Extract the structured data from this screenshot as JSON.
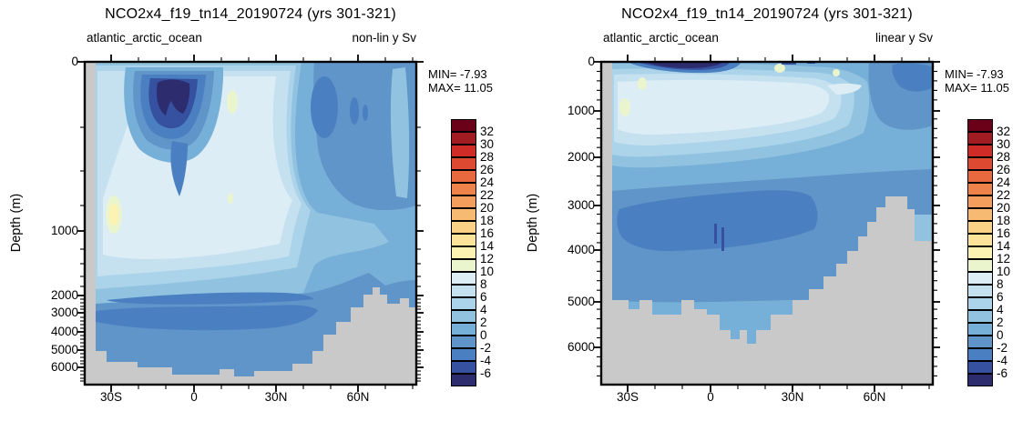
{
  "panels": [
    {
      "title": "NCO2x4_f19_tn14_20190724 (yrs 301-321)",
      "subtitle_left": "atlantic_arctic_ocean",
      "subtitle_right": "non-lin y Sv",
      "ylabel": "Depth (m)",
      "min_label": "MIN= -7.93",
      "max_label": "MAX= 11.05",
      "y_ticks": [
        "0",
        "1000",
        "2000",
        "3000",
        "4000",
        "5000",
        "6000"
      ],
      "x_ticks": [
        "30S",
        "0",
        "30N",
        "60N"
      ]
    },
    {
      "title": "NCO2x4_f19_tn14_20190724 (yrs 301-321)",
      "subtitle_left": "atlantic_arctic_ocean",
      "subtitle_right": "linear y Sv",
      "ylabel": "Depth (m)",
      "min_label": "MIN= -7.93",
      "max_label": "MAX= 11.05",
      "y_ticks": [
        "0",
        "1000",
        "2000",
        "3000",
        "4000",
        "5000",
        "6000"
      ],
      "x_ticks": [
        "30S",
        "0",
        "30N",
        "60N"
      ]
    }
  ],
  "colorbar": {
    "levels": [
      "32",
      "30",
      "28",
      "26",
      "24",
      "22",
      "20",
      "18",
      "16",
      "14",
      "12",
      "10",
      "8",
      "6",
      "4",
      "2",
      "0",
      "-2",
      "-4",
      "-6"
    ],
    "palette": [
      "#6b0019",
      "#a11d21",
      "#d02c27",
      "#de4a31",
      "#e8693d",
      "#ee8349",
      "#f39e5c",
      "#f7ba72",
      "#fad185",
      "#fce59b",
      "#fcf2b1",
      "#eaf5cd",
      "#dcedf5",
      "#c5e1f0",
      "#abd3e9",
      "#91c3e0",
      "#76afd7",
      "#5f95c8",
      "#4a80c1",
      "#36519f",
      "#2c2c6e"
    ]
  },
  "colors": {
    "land": "#c9c9c9",
    "frame": "#000000",
    "background": "#ffffff"
  },
  "chart_data": [
    {
      "type": "heatmap",
      "title": "NCO2x4_f19_tn14_20190724 (yrs 301-321)",
      "region_label": "atlantic_arctic_ocean",
      "scale_label": "non-lin y Sv",
      "units": "Sv",
      "stat_min": -7.93,
      "stat_max": 11.05,
      "contour_levels": [
        -6,
        -4,
        -2,
        0,
        2,
        4,
        6,
        8,
        10,
        12,
        14,
        16,
        18,
        20,
        22,
        24,
        26,
        28,
        30,
        32
      ],
      "x_tick_labels": [
        "30S",
        "0",
        "30N",
        "60N"
      ],
      "x_range_deg": [
        -40,
        82
      ],
      "ylabel": "Depth (m)",
      "y_tick_values": [
        0,
        1000,
        2000,
        3000,
        4000,
        5000,
        6000
      ],
      "y_axis_scale": "non-linear",
      "y_range_m": [
        0,
        6900
      ],
      "legend_position": "right",
      "land_mask": "gray bathymetry"
    },
    {
      "type": "heatmap",
      "title": "NCO2x4_f19_tn14_20190724 (yrs 301-321)",
      "region_label": "atlantic_arctic_ocean",
      "scale_label": "linear y Sv",
      "units": "Sv",
      "stat_min": -7.93,
      "stat_max": 11.05,
      "contour_levels": [
        -6,
        -4,
        -2,
        0,
        2,
        4,
        6,
        8,
        10,
        12,
        14,
        16,
        18,
        20,
        22,
        24,
        26,
        28,
        30,
        32
      ],
      "x_tick_labels": [
        "30S",
        "0",
        "30N",
        "60N"
      ],
      "x_range_deg": [
        -40,
        82
      ],
      "ylabel": "Depth (m)",
      "y_tick_values": [
        0,
        1000,
        2000,
        3000,
        4000,
        5000,
        6000
      ],
      "y_axis_scale": "linear",
      "y_range_m": [
        0,
        6800
      ],
      "legend_position": "right",
      "land_mask": "gray bathymetry"
    }
  ]
}
